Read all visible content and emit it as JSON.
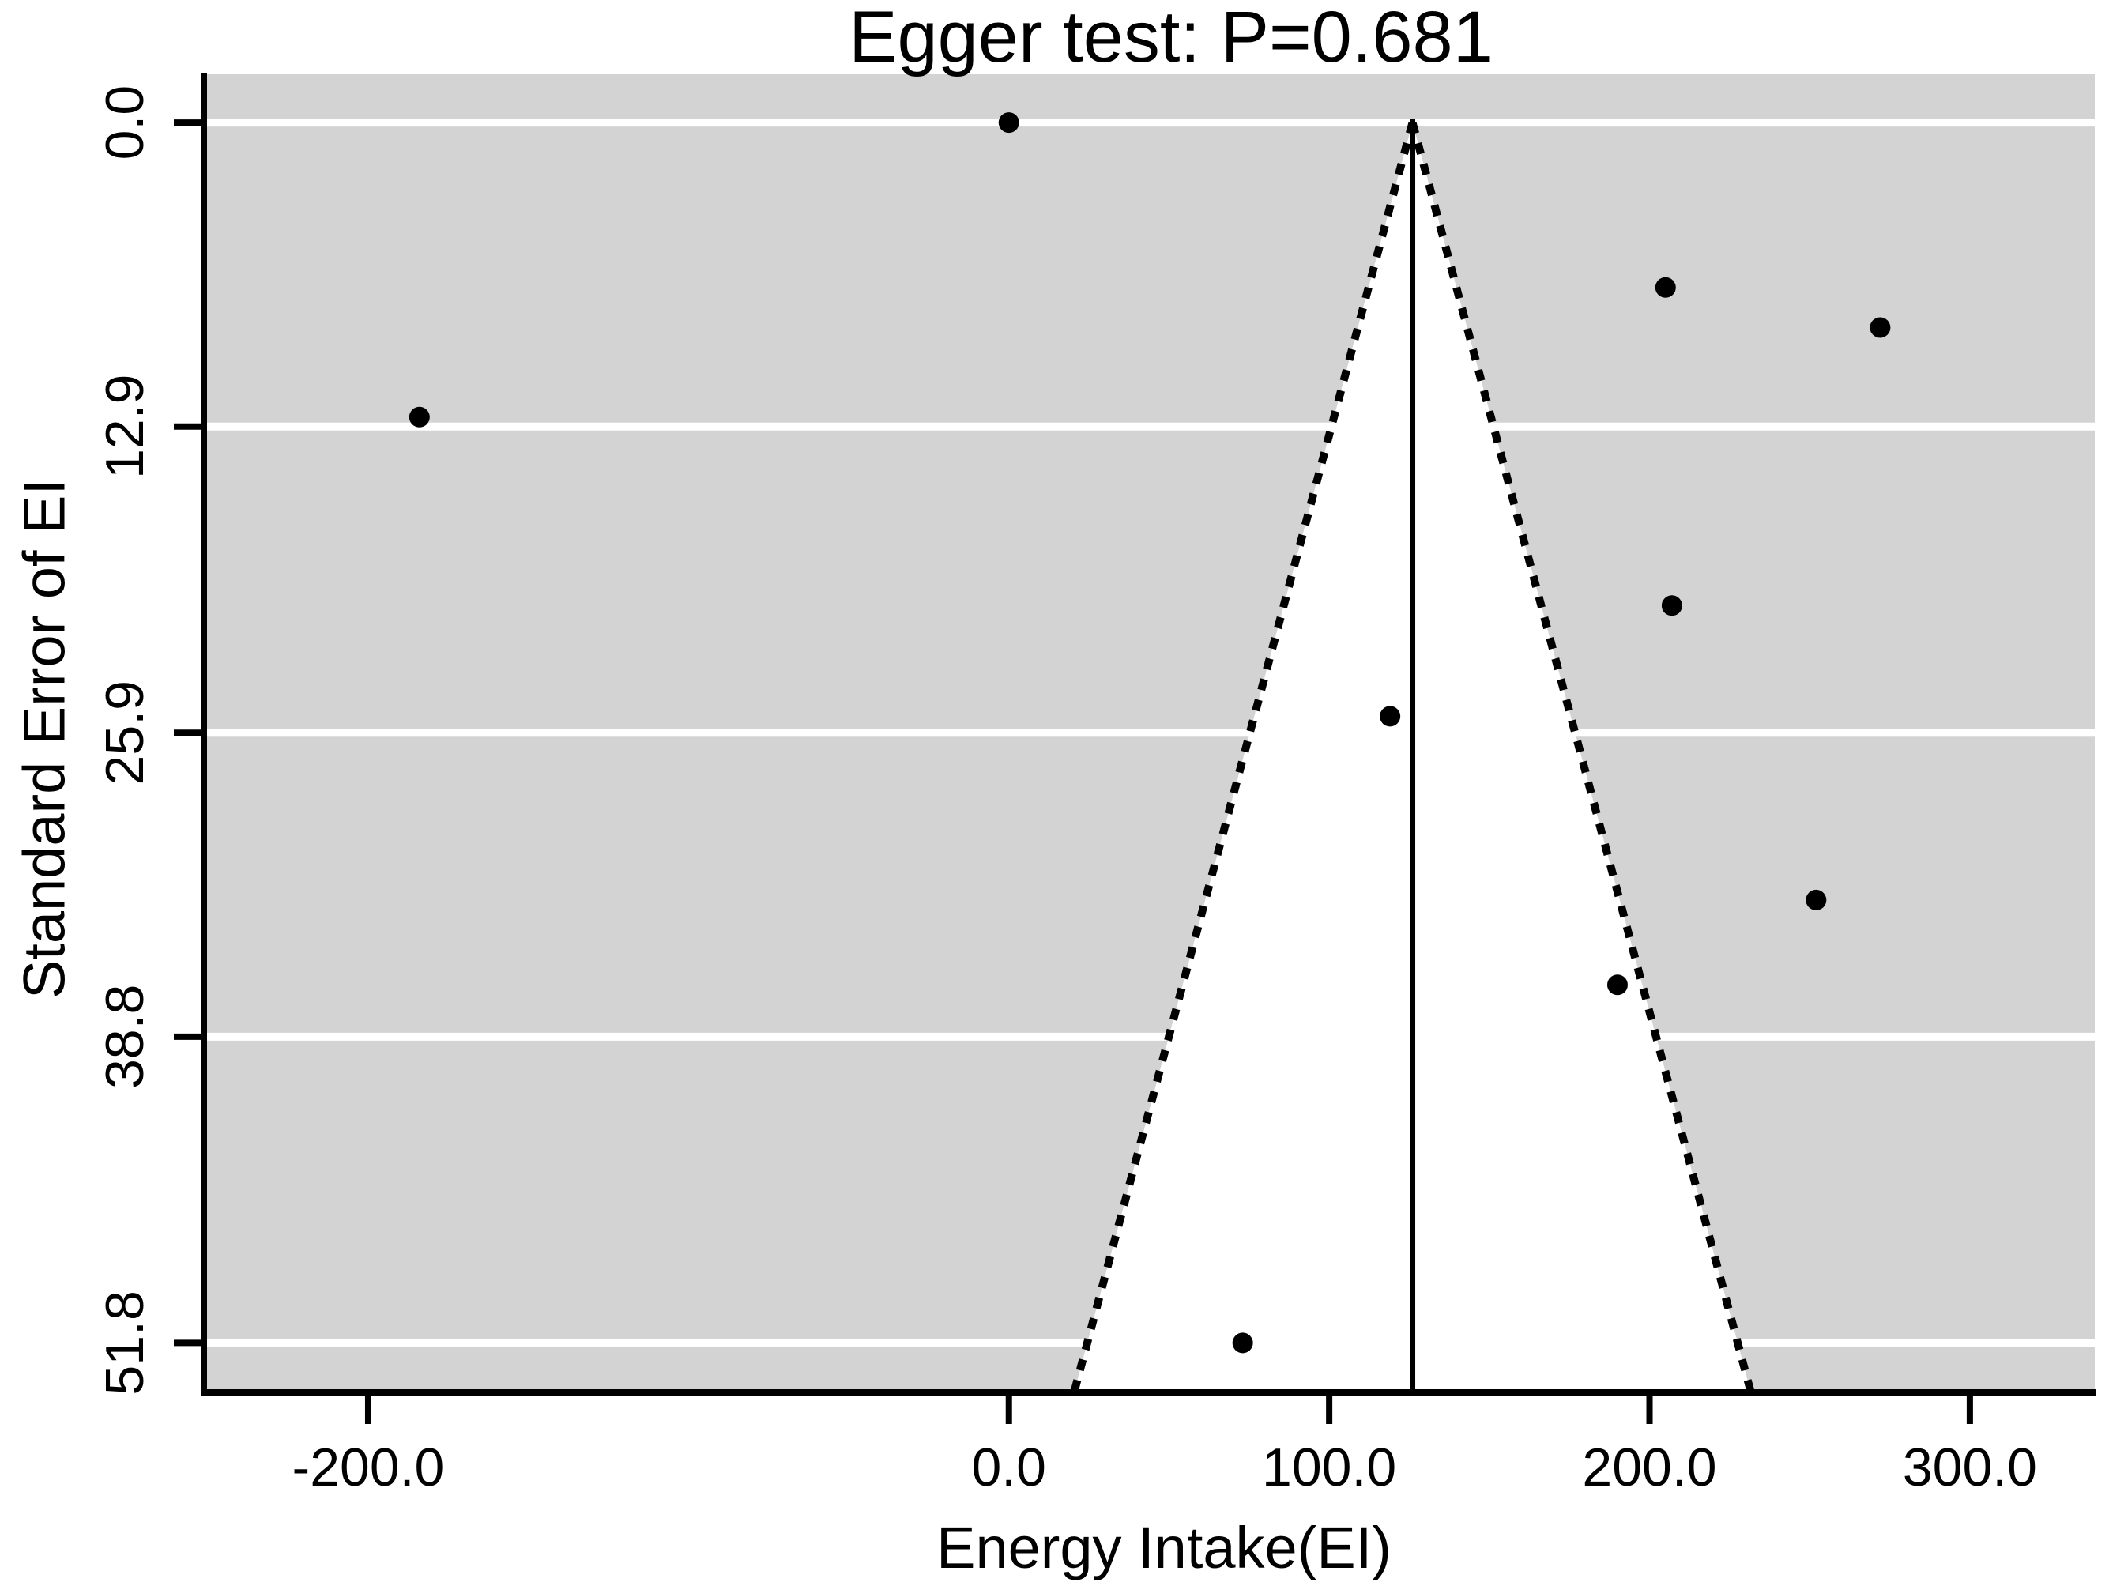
{
  "figure": {
    "background": "#ffffff"
  },
  "chart_data": {
    "type": "scatter",
    "variant": "funnel_plot_egger_test",
    "title": "Egger test: P=0.681",
    "egger_p": 0.681,
    "xlabel": "Energy Intake(EI)",
    "ylabel": "Standard Error of EI",
    "x_ticks": [
      "-200.0",
      "0.0",
      "100.0",
      "200.0",
      "300.0"
    ],
    "x_tick_values": [
      -200,
      0,
      100,
      200,
      300
    ],
    "y_ticks": [
      "0.0",
      "12.9",
      "25.9",
      "38.8",
      "51.8"
    ],
    "y_tick_values": [
      0,
      12.9,
      25.9,
      38.8,
      51.8
    ],
    "xlim": [
      -251.3,
      339.0
    ],
    "ylim_se": [
      -2.05,
      53.9
    ],
    "y_axis_inverted": true,
    "grid": "horizontal-white-lines-on-gray-panel",
    "legend": null,
    "pooled_estimate_x": 126,
    "ci_multiplier": 1.96,
    "points": [
      {
        "x": 0,
        "se": 0.0
      },
      {
        "x": -184,
        "se": 12.5
      },
      {
        "x": 205,
        "se": 7.0
      },
      {
        "x": 272,
        "se": 8.7
      },
      {
        "x": 207,
        "se": 20.5
      },
      {
        "x": 119,
        "se": 25.2
      },
      {
        "x": 252,
        "se": 33.0
      },
      {
        "x": 190,
        "se": 36.6
      },
      {
        "x": 73,
        "se": 51.8
      }
    ],
    "colors": {
      "panel": "#d3d3d3",
      "grid": "#ffffff",
      "funnel_fill": "#ffffff",
      "funnel_border": "#000000",
      "pooled_line": "#000000",
      "point": "#000000",
      "axis": "#000000",
      "text": "#000000"
    }
  }
}
